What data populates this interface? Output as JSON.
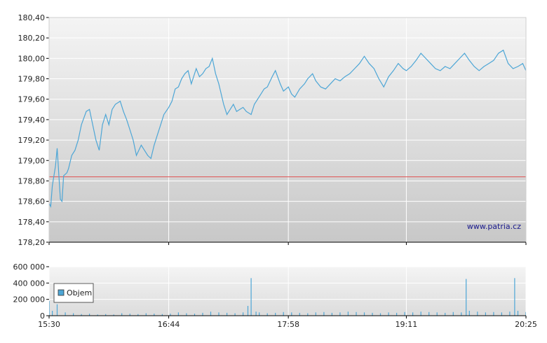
{
  "watermark": "www.patria.cz",
  "colors": {
    "price_line": "#4da6d6",
    "volume": "#4da6d6",
    "reference_line": "#e05050",
    "plot_bg_top": "#f4f4f4",
    "plot_bg_bottom": "#c8c8c8",
    "grid": "#ffffff"
  },
  "chart_data": [
    {
      "type": "line",
      "title": "",
      "xlabel": "",
      "ylabel": "",
      "grid": true,
      "ylim": [
        178.2,
        180.4
      ],
      "y_ticks": [
        "180,40",
        "180,20",
        "180,00",
        "179,80",
        "179,60",
        "179,40",
        "179,20",
        "179,00",
        "178,80",
        "178,60",
        "178,40",
        "178,20"
      ],
      "x_ticks": [
        "15:30",
        "16:44",
        "17:58",
        "19:11",
        "20:25"
      ],
      "xlim": [
        "15:30",
        "20:25"
      ],
      "reference_line": 178.84,
      "series": [
        {
          "x": [
            "15:30",
            "15:31",
            "15:32",
            "15:34",
            "15:35",
            "15:37",
            "15:38",
            "15:39",
            "15:41",
            "15:42",
            "15:44",
            "15:46",
            "15:48",
            "15:50",
            "15:53",
            "15:55",
            "15:57",
            "15:59",
            "16:01",
            "16:03",
            "16:05",
            "16:07",
            "16:09",
            "16:11",
            "16:14",
            "16:16",
            "16:18",
            "16:20",
            "16:22",
            "16:24",
            "16:27",
            "16:29",
            "16:31",
            "16:33",
            "16:35",
            "16:37",
            "16:39",
            "16:41",
            "16:44",
            "16:46",
            "16:48",
            "16:50",
            "16:52",
            "16:54",
            "16:56",
            "16:58",
            "17:01",
            "17:03",
            "17:05",
            "17:07",
            "17:09",
            "17:11",
            "17:13",
            "17:15",
            "17:18",
            "17:20",
            "17:22",
            "17:24",
            "17:26",
            "17:28",
            "17:30",
            "17:32",
            "17:35",
            "17:37",
            "17:39",
            "17:41",
            "17:43",
            "17:45",
            "17:48",
            "17:50",
            "17:53",
            "17:55",
            "17:58",
            "18:00",
            "18:02",
            "18:05",
            "18:08",
            "18:10",
            "18:13",
            "18:15",
            "18:18",
            "18:21",
            "18:24",
            "18:27",
            "18:30",
            "18:33",
            "18:36",
            "18:39",
            "18:42",
            "18:45",
            "18:48",
            "18:51",
            "18:54",
            "18:57",
            "19:00",
            "19:03",
            "19:06",
            "19:09",
            "19:11",
            "19:14",
            "19:17",
            "19:20",
            "19:23",
            "19:26",
            "19:29",
            "19:32",
            "19:35",
            "19:38",
            "19:41",
            "19:44",
            "19:47",
            "19:50",
            "19:53",
            "19:56",
            "19:59",
            "20:02",
            "20:05",
            "20:08",
            "20:11",
            "20:14",
            "20:17",
            "20:20",
            "20:23",
            "20:25"
          ],
          "values": [
            178.58,
            178.55,
            178.75,
            178.95,
            179.12,
            178.62,
            178.6,
            178.85,
            178.88,
            178.92,
            179.05,
            179.1,
            179.2,
            179.35,
            179.48,
            179.5,
            179.35,
            179.2,
            179.1,
            179.35,
            179.45,
            179.35,
            179.5,
            179.55,
            179.58,
            179.48,
            179.4,
            179.3,
            179.2,
            179.05,
            179.15,
            179.1,
            179.05,
            179.02,
            179.15,
            179.25,
            179.35,
            179.45,
            179.52,
            179.58,
            179.7,
            179.72,
            179.8,
            179.85,
            179.88,
            179.75,
            179.9,
            179.82,
            179.85,
            179.9,
            179.92,
            180.0,
            179.85,
            179.75,
            179.55,
            179.45,
            179.5,
            179.55,
            179.48,
            179.5,
            179.52,
            179.48,
            179.45,
            179.55,
            179.6,
            179.65,
            179.7,
            179.72,
            179.82,
            179.88,
            179.75,
            179.68,
            179.72,
            179.65,
            179.62,
            179.7,
            179.75,
            179.8,
            179.85,
            179.78,
            179.72,
            179.7,
            179.75,
            179.8,
            179.78,
            179.82,
            179.85,
            179.9,
            179.95,
            180.02,
            179.95,
            179.9,
            179.8,
            179.72,
            179.82,
            179.88,
            179.95,
            179.9,
            179.88,
            179.92,
            179.98,
            180.05,
            180.0,
            179.95,
            179.9,
            179.88,
            179.92,
            179.9,
            179.95,
            180.0,
            180.05,
            179.98,
            179.92,
            179.88,
            179.92,
            179.95,
            179.98,
            180.05,
            180.08,
            179.95,
            179.9,
            179.92,
            179.95,
            179.88
          ]
        }
      ]
    },
    {
      "type": "bar",
      "title": "",
      "xlabel": "",
      "ylabel": "",
      "grid": true,
      "ylim": [
        0,
        600000
      ],
      "y_ticks": [
        "600 000",
        "400 000",
        "200 000",
        "0"
      ],
      "x_ticks": [
        "15:30",
        "16:44",
        "17:58",
        "19:11",
        "20:25"
      ],
      "xlim": [
        "15:30",
        "20:25"
      ],
      "legend": {
        "label": "Objem",
        "position": "bottom-left"
      },
      "series": [
        {
          "name": "Objem",
          "x": [
            "15:30",
            "15:32",
            "15:35",
            "15:40",
            "15:45",
            "15:50",
            "15:55",
            "16:00",
            "16:05",
            "16:10",
            "16:15",
            "16:20",
            "16:25",
            "16:30",
            "16:35",
            "16:40",
            "16:45",
            "16:50",
            "16:55",
            "17:00",
            "17:05",
            "17:10",
            "17:15",
            "17:20",
            "17:25",
            "17:30",
            "17:33",
            "17:35",
            "17:38",
            "17:40",
            "17:45",
            "17:50",
            "17:55",
            "18:00",
            "18:05",
            "18:10",
            "18:15",
            "18:20",
            "18:25",
            "18:30",
            "18:35",
            "18:40",
            "18:45",
            "18:50",
            "18:55",
            "19:00",
            "19:05",
            "19:10",
            "19:15",
            "19:20",
            "19:25",
            "19:30",
            "19:35",
            "19:40",
            "19:45",
            "19:48",
            "19:50",
            "19:55",
            "20:00",
            "20:05",
            "20:10",
            "20:15",
            "20:18",
            "20:20",
            "20:25"
          ],
          "values": [
            180000,
            60000,
            140000,
            40000,
            30000,
            20000,
            25000,
            15000,
            20000,
            15000,
            30000,
            25000,
            20000,
            30000,
            25000,
            20000,
            25000,
            40000,
            30000,
            25000,
            35000,
            50000,
            40000,
            35000,
            30000,
            40000,
            120000,
            460000,
            50000,
            40000,
            30000,
            35000,
            45000,
            40000,
            35000,
            30000,
            40000,
            45000,
            35000,
            40000,
            50000,
            45000,
            40000,
            35000,
            30000,
            40000,
            35000,
            45000,
            40000,
            50000,
            45000,
            40000,
            35000,
            45000,
            40000,
            450000,
            60000,
            50000,
            40000,
            45000,
            40000,
            50000,
            460000,
            60000,
            45000
          ]
        }
      ]
    }
  ]
}
